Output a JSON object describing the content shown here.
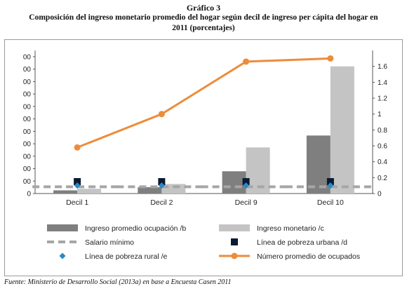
{
  "title_lines": [
    "Gráfico 3",
    "Composición del ingreso monetario promedio del hogar según decil de ingreso per cápita del hogar en",
    "2011 (porcentajes)"
  ],
  "source": "Fuente: Ministerio de Desarrollo Social (2013a) en base a Encuesta Casen 2011",
  "colors": {
    "ocupacion": "#7f7f7f",
    "monetario": "#c4c4c4",
    "salario": "#a6a6a6",
    "pobreza_urbana": "#0b1a33",
    "pobreza_rural": "#2a8ac8",
    "ocupados": "#ed8c3a"
  },
  "chart_data": {
    "type": "bar",
    "categories": [
      "Decil 1",
      "Decil 2",
      "Decil 9",
      "Decil 10"
    ],
    "left_axis": {
      "tick_labels": [
        "0",
        "00",
        "00",
        "00",
        "00",
        "00",
        "00",
        "00",
        "00",
        "00",
        "00",
        "00"
      ]
    },
    "right_axis": {
      "ylim": [
        0,
        1.8
      ],
      "ticks": [
        "0",
        "0.2",
        "0.4",
        "0.6",
        "0.8",
        "1",
        "1.2",
        "1.4",
        "1.6"
      ]
    },
    "series": [
      {
        "name": "Ingreso promedio ocupación /b",
        "kind": "bar",
        "axis": "left",
        "values": [
          0.04,
          0.08,
          0.28,
          0.73
        ]
      },
      {
        "name": "Ingreso monetario /c",
        "kind": "bar",
        "axis": "left",
        "values": [
          0.06,
          0.12,
          0.58,
          1.6
        ]
      },
      {
        "name": "Salario mínimo",
        "kind": "dashed-line",
        "axis": "left",
        "values": [
          0.085,
          0.085,
          0.085,
          0.085
        ]
      },
      {
        "name": "Línea de pobreza urbana /d",
        "kind": "marker-square",
        "axis": "left",
        "values": [
          0.15,
          0.15,
          0.15,
          0.15
        ]
      },
      {
        "name": "Línea de pobreza rural /e",
        "kind": "marker-diamond",
        "axis": "left",
        "values": [
          0.1,
          0.1,
          0.1,
          0.1
        ]
      },
      {
        "name": "Número promedio de ocupados",
        "kind": "line",
        "axis": "right",
        "values": [
          0.58,
          1.0,
          1.66,
          1.7
        ]
      }
    ],
    "legend_placement": "bottom"
  }
}
